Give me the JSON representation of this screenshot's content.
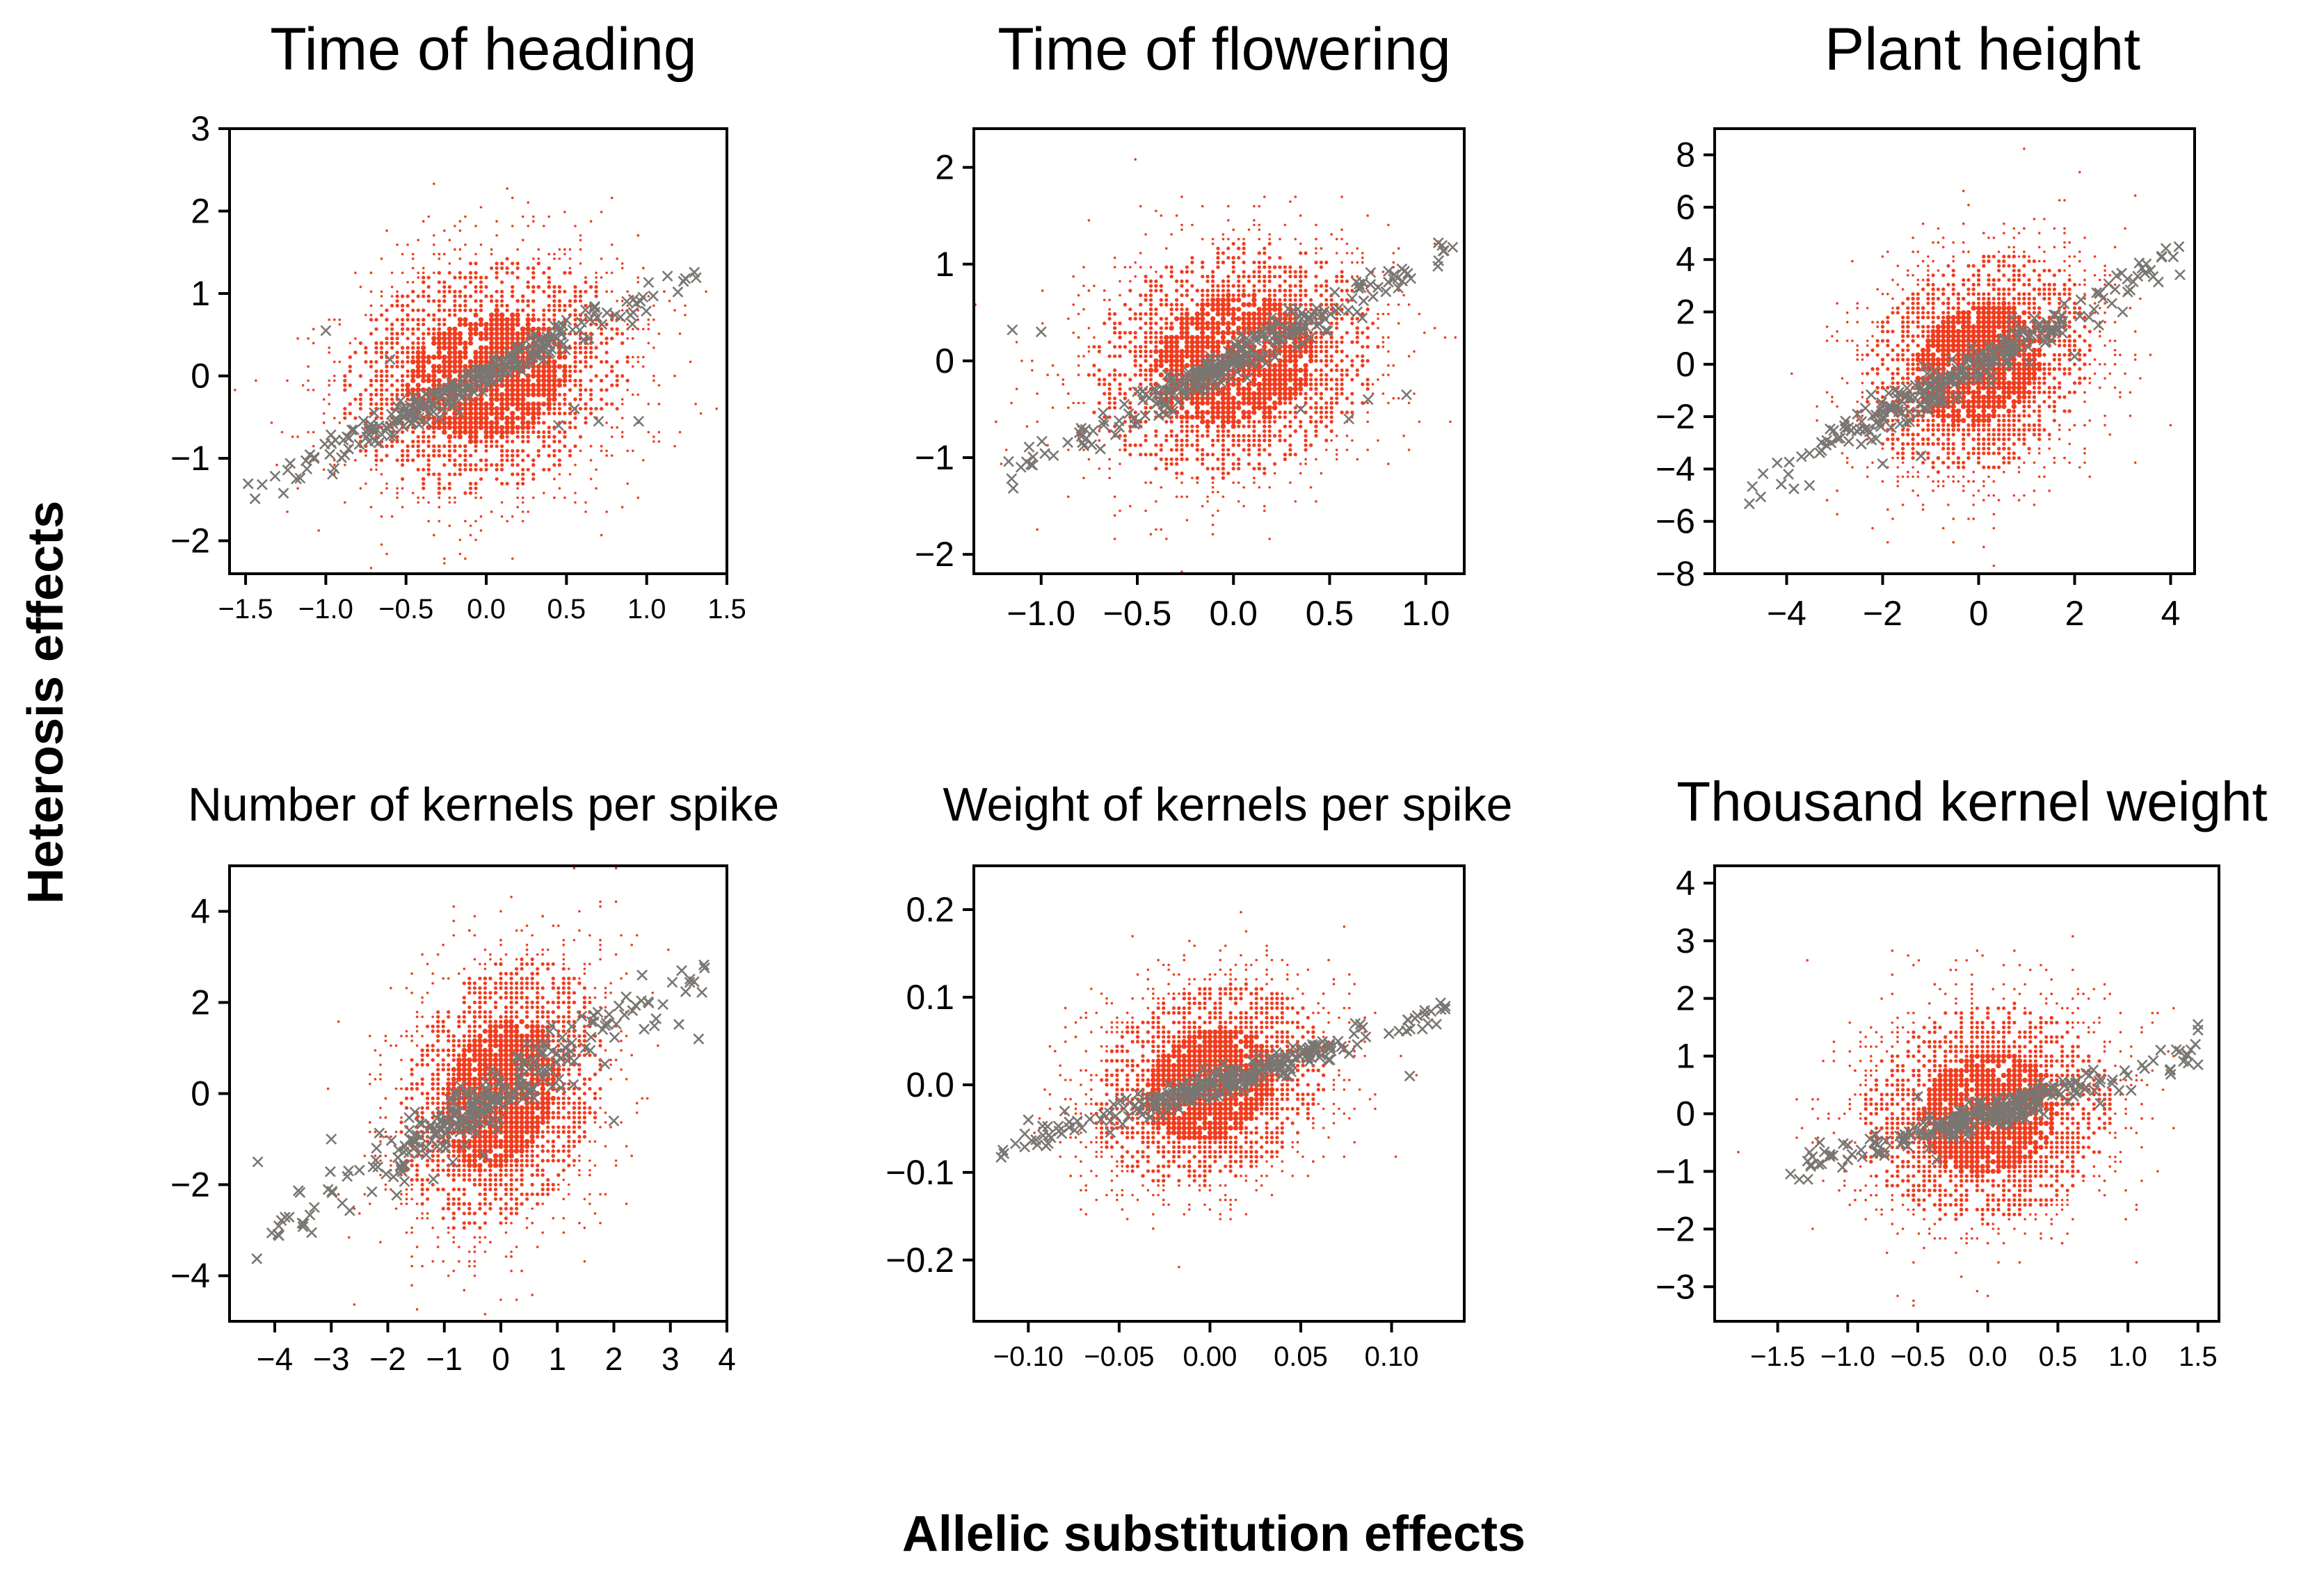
{
  "figure": {
    "ylabel": "Heterosis effects",
    "xlabel": "Allelic substitution effects",
    "colors": {
      "background_points": "#F03C1E",
      "highlight_points": "#7A7672",
      "axis": "#000000"
    }
  },
  "chart_data": [
    {
      "type": "scatter",
      "title": "Time of heading",
      "xlim": [
        -1.6,
        1.5
      ],
      "ylim": [
        -2.4,
        3.0
      ],
      "xticks": [
        -1.5,
        -1.0,
        -0.5,
        0.0,
        0.5,
        1.0,
        1.5
      ],
      "xtick_labels": [
        "−1.5",
        "−1.0",
        "−0.5",
        "0.0",
        "0.5",
        "1.0",
        "1.5"
      ],
      "yticks": [
        -2,
        -1,
        0,
        1,
        2,
        3
      ],
      "ytick_labels": [
        "−2",
        "−1",
        "0",
        "1",
        "2",
        "3"
      ],
      "cloud": {
        "cx": 0.0,
        "cy": 0.0,
        "sx": 0.45,
        "sy": 0.72,
        "rho": 0.15
      },
      "trend": {
        "slope": 0.95,
        "x_range": [
          -1.5,
          1.35
        ],
        "noise": 0.1
      },
      "outliers": [
        [
          -1.0,
          0.55
        ],
        [
          0.7,
          -0.55
        ],
        [
          0.95,
          -0.55
        ],
        [
          0.45,
          -0.6
        ],
        [
          -0.6,
          0.2
        ],
        [
          0.55,
          -0.4
        ]
      ]
    },
    {
      "type": "scatter",
      "title": "Time of flowering",
      "xlim": [
        -1.35,
        1.2
      ],
      "ylim": [
        -2.2,
        2.4
      ],
      "xticks": [
        -1.0,
        -0.5,
        0.0,
        0.5,
        1.0
      ],
      "xtick_labels": [
        "−1.0",
        "−0.5",
        "0.0",
        "0.5",
        "1.0"
      ],
      "yticks": [
        -2,
        -1,
        0,
        1,
        2
      ],
      "ytick_labels": [
        "−2",
        "−1",
        "0",
        "1",
        "2"
      ],
      "cloud": {
        "cx": 0.0,
        "cy": 0.0,
        "sx": 0.38,
        "sy": 0.62,
        "rho": 0.15
      },
      "trend": {
        "slope": 1.0,
        "x_range": [
          -1.2,
          1.15
        ],
        "noise": 0.1
      },
      "outliers": [
        [
          -1.0,
          0.3
        ],
        [
          -1.15,
          0.32
        ],
        [
          0.9,
          -0.35
        ],
        [
          0.7,
          -0.4
        ],
        [
          0.6,
          -0.6
        ],
        [
          0.35,
          -0.5
        ]
      ]
    },
    {
      "type": "scatter",
      "title": "Plant height",
      "xlim": [
        -5.5,
        4.5
      ],
      "ylim": [
        -8.0,
        9.0
      ],
      "xticks": [
        -4,
        -2,
        0,
        2,
        4
      ],
      "xtick_labels": [
        "−4",
        "−2",
        "0",
        "2",
        "4"
      ],
      "yticks": [
        -8,
        -6,
        -4,
        -2,
        0,
        2,
        4,
        6,
        8
      ],
      "ytick_labels": [
        "−8",
        "−6",
        "−4",
        "−2",
        "0",
        "2",
        "4",
        "6",
        "8"
      ],
      "cloud": {
        "cx": 0.0,
        "cy": 0.0,
        "sx": 1.2,
        "sy": 2.1,
        "rho": 0.2
      },
      "trend": {
        "slope": 1.0,
        "x_range": [
          -5.0,
          4.2
        ],
        "noise": 0.35
      },
      "outliers": [
        [
          -1.2,
          -3.5
        ],
        [
          2.0,
          0.3
        ],
        [
          2.5,
          1.5
        ],
        [
          -2.0,
          -3.8
        ],
        [
          3.0,
          2.0
        ]
      ]
    },
    {
      "type": "scatter",
      "title": "Number of kernels per spike",
      "xlim": [
        -4.8,
        4.0
      ],
      "ylim": [
        -5.0,
        5.0
      ],
      "xticks": [
        -4,
        -3,
        -2,
        -1,
        0,
        1,
        2,
        3,
        4
      ],
      "xtick_labels": [
        "−4",
        "−3",
        "−2",
        "−1",
        "0",
        "1",
        "2",
        "3",
        "4"
      ],
      "yticks": [
        -4,
        -2,
        0,
        2,
        4
      ],
      "ytick_labels": [
        "−4",
        "−2",
        "0",
        "2",
        "4"
      ],
      "cloud": {
        "cx": 0.0,
        "cy": 0.0,
        "sx": 0.9,
        "sy": 1.5,
        "rho": 0.25
      },
      "trend": {
        "slope": 0.75,
        "x_range": [
          -4.5,
          3.7
        ],
        "noise": 0.35
      },
      "outliers": [
        [
          -4.3,
          -1.5
        ],
        [
          -3.0,
          -1.0
        ],
        [
          3.2,
          2.7
        ],
        [
          2.5,
          2.6
        ],
        [
          3.5,
          1.2
        ],
        [
          2.0,
          -0.6
        ],
        [
          -3.3,
          -2.5
        ],
        [
          -2.2,
          -1.2
        ]
      ]
    },
    {
      "type": "scatter",
      "title": "Weight of kernels per spike",
      "xlim": [
        -0.13,
        0.14
      ],
      "ylim": [
        -0.27,
        0.25
      ],
      "xticks": [
        -0.1,
        -0.05,
        0.0,
        0.05,
        0.1
      ],
      "xtick_labels": [
        "−0.10",
        "−0.05",
        "0.00",
        "0.05",
        "0.10"
      ],
      "yticks": [
        -0.2,
        -0.1,
        0.0,
        0.1,
        0.2
      ],
      "ytick_labels": [
        "−0.2",
        "−0.1",
        "0.0",
        "0.1",
        "0.2"
      ],
      "cloud": {
        "cx": 0.0,
        "cy": 0.0,
        "sx": 0.032,
        "sy": 0.058,
        "rho": 0.2
      },
      "trend": {
        "slope": 0.65,
        "x_range": [
          -0.115,
          0.13
        ],
        "noise": 0.008
      },
      "outliers": [
        [
          0.12,
          0.07
        ],
        [
          0.11,
          0.01
        ],
        [
          0.08,
          0.07
        ],
        [
          0.06,
          0.045
        ],
        [
          -0.08,
          -0.03
        ],
        [
          -0.1,
          -0.04
        ]
      ]
    },
    {
      "type": "scatter",
      "title": "Thousand kernel weight",
      "xlim": [
        -1.95,
        1.65
      ],
      "ylim": [
        -3.6,
        4.3
      ],
      "xticks": [
        -1.5,
        -1.0,
        -0.5,
        0.0,
        0.5,
        1.0,
        1.5
      ],
      "xtick_labels": [
        "−1.5",
        "−1.0",
        "−0.5",
        "0.0",
        "0.5",
        "1.0",
        "1.5"
      ],
      "yticks": [
        -3,
        -2,
        -1,
        0,
        1,
        2,
        3,
        4
      ],
      "ytick_labels": [
        "−3",
        "−2",
        "−1",
        "0",
        "1",
        "2",
        "3",
        "4"
      ],
      "cloud": {
        "cx": 0.0,
        "cy": 0.0,
        "sx": 0.45,
        "sy": 0.95,
        "rho": 0.1
      },
      "trend": {
        "slope": 0.7,
        "x_range": [
          -1.45,
          1.5
        ],
        "noise": 0.15
      },
      "outliers": [
        [
          1.5,
          1.55
        ],
        [
          1.5,
          1.45
        ],
        [
          -1.2,
          -0.5
        ],
        [
          -1.0,
          -0.8
        ],
        [
          -0.8,
          -0.5
        ],
        [
          -0.5,
          0.3
        ],
        [
          1.3,
          0.75
        ],
        [
          1.5,
          0.85
        ]
      ]
    }
  ]
}
